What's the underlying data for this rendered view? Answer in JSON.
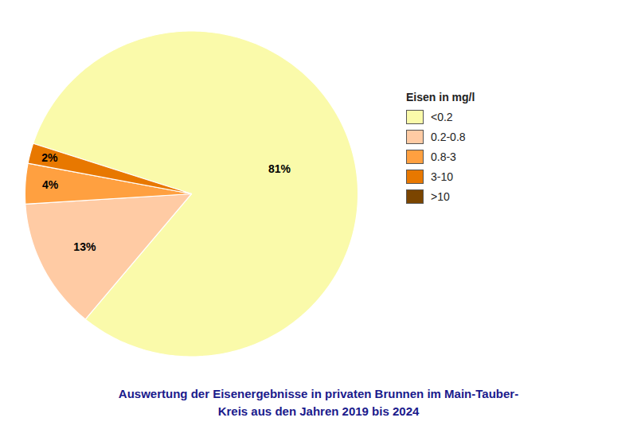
{
  "chart_data": {
    "type": "pie",
    "title": "Auswertung der Eisenergebnisse in privaten Brunnen im Main-Tauber-\nKreis aus den Jahren 2019 bis 2024",
    "categories": [
      "<0.2",
      "0.2-0.8",
      "0.8-3",
      "3-10",
      ">10"
    ],
    "values": [
      81,
      13,
      4,
      2,
      null
    ],
    "value_labels": [
      "81%",
      "13%",
      "4%",
      "2%",
      null
    ],
    "colors": [
      "#FAFAAA",
      "#FFCBA4",
      "#FFA040",
      "#E87800",
      "#7B4500"
    ],
    "data_labels": true,
    "legend": "right",
    "legend_title": "Eisen in mg/l"
  }
}
